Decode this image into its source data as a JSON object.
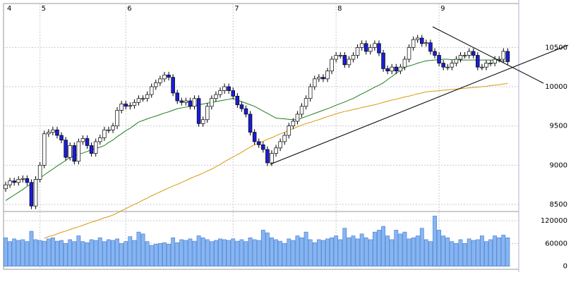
{
  "chart_data": {
    "type": "candlestick",
    "categories": [
      "4",
      null,
      null,
      null,
      null,
      null,
      null,
      null,
      "5",
      null,
      null,
      null,
      null,
      null,
      null,
      null,
      null,
      null,
      null,
      null,
      null,
      null,
      null,
      null,
      null,
      null,
      null,
      null,
      "6",
      null,
      null,
      null,
      null,
      null,
      null,
      null,
      null,
      null,
      null,
      null,
      null,
      null,
      null,
      null,
      null,
      null,
      null,
      null,
      null,
      null,
      null,
      null,
      null,
      "7",
      null,
      null,
      null,
      null,
      null,
      null,
      null,
      null,
      null,
      null,
      null,
      null,
      null,
      null,
      null,
      null,
      null,
      null,
      null,
      null,
      null,
      null,
      null,
      "8",
      null,
      null,
      null,
      null,
      null,
      null,
      null,
      null,
      null,
      null,
      null,
      null,
      null,
      null,
      null,
      null,
      null,
      null,
      null,
      null,
      null,
      null,
      null,
      "9",
      null,
      null,
      null,
      null,
      null,
      null,
      null,
      null,
      null,
      null,
      null,
      null,
      null,
      null,
      null,
      null
    ],
    "open": [
      8700,
      8750,
      8800,
      8780,
      8820,
      8830,
      8780,
      8480,
      8820,
      9000,
      9400,
      9420,
      9450,
      9380,
      9320,
      9100,
      9250,
      9050,
      9300,
      9340,
      9250,
      9150,
      9300,
      9350,
      9450,
      9450,
      9500,
      9700,
      9780,
      9750,
      9760,
      9800,
      9850,
      9850,
      9900,
      10000,
      10050,
      10100,
      10150,
      10120,
      9920,
      9820,
      9800,
      9820,
      9750,
      9850,
      9530,
      9580,
      9750,
      9850,
      9900,
      9950,
      10000,
      9950,
      9880,
      9770,
      9720,
      9650,
      9420,
      9300,
      9260,
      9200,
      9030,
      9150,
      9220,
      9300,
      9380,
      9500,
      9560,
      9650,
      9750,
      9850,
      10000,
      10100,
      10120,
      10100,
      10200,
      10350,
      10400,
      10400,
      10280,
      10350,
      10400,
      10500,
      10550,
      10450,
      10500,
      10550,
      10430,
      10230,
      10200,
      10250,
      10200,
      10250,
      10350,
      10500,
      10600,
      10620,
      10550,
      10560,
      10450,
      10400,
      10300,
      10250,
      10250,
      10300,
      10350,
      10400,
      10400,
      10450,
      10400,
      10250,
      10250,
      10300,
      10300,
      10350,
      10350,
      10450
    ],
    "high": [
      8790,
      8840,
      8840,
      8860,
      8870,
      8870,
      8820,
      8860,
      9040,
      9440,
      9460,
      9490,
      9490,
      9420,
      9360,
      9290,
      9290,
      9340,
      9380,
      9380,
      9290,
      9340,
      9390,
      9490,
      9490,
      9540,
      9740,
      9820,
      9820,
      9800,
      9840,
      9890,
      9890,
      9940,
      10040,
      10090,
      10140,
      10190,
      10190,
      10160,
      9960,
      9860,
      9860,
      9860,
      9890,
      9890,
      9620,
      9790,
      9890,
      9940,
      9990,
      10040,
      10040,
      9990,
      9920,
      9810,
      9760,
      9690,
      9460,
      9340,
      9300,
      9240,
      9190,
      9260,
      9340,
      9420,
      9540,
      9600,
      9690,
      9790,
      9890,
      10040,
      10140,
      10160,
      10160,
      10240,
      10390,
      10440,
      10440,
      10440,
      10390,
      10440,
      10540,
      10590,
      10590,
      10540,
      10590,
      10590,
      10470,
      10270,
      10290,
      10290,
      10290,
      10390,
      10540,
      10640,
      10660,
      10660,
      10600,
      10600,
      10490,
      10440,
      10340,
      10290,
      10340,
      10390,
      10440,
      10440,
      10490,
      10490,
      10440,
      10290,
      10340,
      10340,
      10390,
      10390,
      10490,
      10490
    ],
    "low": [
      8660,
      8710,
      8740,
      8740,
      8780,
      8740,
      8440,
      8440,
      8780,
      8960,
      9360,
      9380,
      9340,
      9280,
      9060,
      9060,
      9010,
      9010,
      9260,
      9210,
      9110,
      9110,
      9260,
      9310,
      9410,
      9410,
      9460,
      9660,
      9710,
      9710,
      9720,
      9760,
      9810,
      9810,
      9860,
      9960,
      10010,
      10060,
      10080,
      9880,
      9780,
      9760,
      9760,
      9710,
      9710,
      9490,
      9490,
      9540,
      9710,
      9810,
      9860,
      9910,
      9910,
      9840,
      9730,
      9680,
      9610,
      9380,
      9260,
      9220,
      9160,
      8990,
      8990,
      9110,
      9180,
      9260,
      9340,
      9460,
      9520,
      9610,
      9710,
      9810,
      9960,
      10060,
      10060,
      10060,
      10160,
      10310,
      10360,
      10240,
      10240,
      10310,
      10360,
      10460,
      10410,
      10410,
      10460,
      10390,
      10190,
      10160,
      10160,
      10160,
      10160,
      10210,
      10310,
      10460,
      10560,
      10510,
      10510,
      10410,
      10360,
      10260,
      10210,
      10210,
      10210,
      10260,
      10310,
      10360,
      10360,
      10360,
      10210,
      10210,
      10210,
      10260,
      10260,
      10310,
      10310,
      10280
    ],
    "close": [
      8750,
      8800,
      8780,
      8820,
      8830,
      8780,
      8480,
      8820,
      9000,
      9400,
      9420,
      9450,
      9380,
      9320,
      9100,
      9250,
      9050,
      9300,
      9340,
      9250,
      9150,
      9300,
      9350,
      9450,
      9450,
      9500,
      9700,
      9780,
      9750,
      9760,
      9800,
      9850,
      9850,
      9900,
      10000,
      10050,
      10100,
      10150,
      10120,
      9920,
      9820,
      9800,
      9820,
      9750,
      9850,
      9530,
      9580,
      9750,
      9850,
      9900,
      9950,
      10000,
      9950,
      9880,
      9770,
      9720,
      9650,
      9420,
      9300,
      9260,
      9200,
      9030,
      9150,
      9220,
      9300,
      9380,
      9500,
      9560,
      9650,
      9750,
      9850,
      10000,
      10100,
      10120,
      10100,
      10200,
      10350,
      10400,
      10400,
      10280,
      10350,
      10400,
      10500,
      10550,
      10450,
      10500,
      10550,
      10430,
      10230,
      10200,
      10250,
      10200,
      10250,
      10350,
      10500,
      10600,
      10620,
      10550,
      10560,
      10450,
      10400,
      10300,
      10250,
      10250,
      10300,
      10350,
      10400,
      10400,
      10450,
      10400,
      10250,
      10250,
      10300,
      10300,
      10350,
      10350,
      10450,
      10320
    ],
    "up_color": "#ffffff",
    "down_color": "#1c1cd8",
    "ylim": [
      8410,
      11060
    ],
    "yticks": [
      8500,
      9000,
      9500,
      10000,
      10500
    ],
    "grid": true,
    "moving_averages": [
      {
        "color": "#1e7d1e",
        "values": [
          8550,
          8585,
          8620,
          8655,
          8690,
          8730,
          8765,
          8800,
          8840,
          8875,
          8915,
          8950,
          8990,
          9025,
          9060,
          9100,
          9120,
          9140,
          9155,
          9175,
          9195,
          9215,
          9230,
          9250,
          9290,
          9320,
          9365,
          9400,
          9440,
          9470,
          9510,
          9550,
          9570,
          9590,
          9610,
          9625,
          9645,
          9665,
          9680,
          9700,
          9720,
          9730,
          9740,
          9750,
          9760,
          9770,
          9780,
          9790,
          9800,
          9810,
          9820,
          9830,
          9840,
          9850,
          9830,
          9810,
          9790,
          9770,
          9750,
          9720,
          9690,
          9660,
          9630,
          9600,
          9595,
          9590,
          9585,
          9580,
          9580,
          9600,
          9620,
          9640,
          9660,
          9680,
          9700,
          9720,
          9740,
          9765,
          9785,
          9805,
          9830,
          9850,
          9880,
          9910,
          9935,
          9965,
          9995,
          10020,
          10050,
          10090,
          10130,
          10170,
          10210,
          10250,
          10265,
          10280,
          10300,
          10315,
          10330,
          10335,
          10340,
          10345,
          10350,
          10350,
          10345,
          10345,
          10340,
          10340,
          10340,
          10340,
          10340,
          10340,
          10340,
          10340,
          10340,
          10335,
          10325,
          10320
        ]
      },
      {
        "color": "#d8980f",
        "values": [
          null,
          null,
          null,
          null,
          null,
          null,
          null,
          null,
          null,
          8070,
          8090,
          8105,
          8125,
          8145,
          8160,
          8180,
          8200,
          8215,
          8235,
          8255,
          8275,
          8290,
          8310,
          8330,
          8345,
          8365,
          8390,
          8420,
          8445,
          8475,
          8500,
          8525,
          8555,
          8580,
          8610,
          8635,
          8660,
          8685,
          8710,
          8735,
          8755,
          8780,
          8805,
          8830,
          8855,
          8875,
          8900,
          8925,
          8950,
          8980,
          9010,
          9045,
          9075,
          9105,
          9135,
          9165,
          9200,
          9230,
          9260,
          9285,
          9305,
          9330,
          9350,
          9375,
          9400,
          9420,
          9445,
          9465,
          9490,
          9510,
          9530,
          9545,
          9565,
          9580,
          9600,
          9620,
          9635,
          9655,
          9670,
          9685,
          9695,
          9710,
          9720,
          9735,
          9745,
          9760,
          9770,
          9785,
          9800,
          9815,
          9830,
          9840,
          9855,
          9870,
          9880,
          9895,
          9910,
          9920,
          9935,
          9940,
          9945,
          9950,
          9955,
          9960,
          9965,
          9970,
          9975,
          9980,
          9985,
          9990,
          9995,
          10000,
          10005,
          10015,
          10020,
          10025,
          10035,
          10040
        ]
      }
    ],
    "volume": {
      "color": "#86b6f2",
      "values": [
        75000,
        65000,
        72000,
        68000,
        70000,
        65000,
        92000,
        70000,
        68000,
        66000,
        72000,
        75000,
        66000,
        68000,
        60000,
        70000,
        65000,
        80000,
        65000,
        62000,
        70000,
        68000,
        75000,
        65000,
        70000,
        68000,
        72000,
        60000,
        65000,
        78000,
        68000,
        90000,
        85000,
        65000,
        55000,
        58000,
        60000,
        62000,
        58000,
        75000,
        62000,
        70000,
        68000,
        72000,
        66000,
        80000,
        75000,
        70000,
        65000,
        68000,
        72000,
        70000,
        68000,
        72000,
        66000,
        70000,
        65000,
        75000,
        70000,
        68000,
        95000,
        88000,
        75000,
        70000,
        66000,
        60000,
        72000,
        68000,
        80000,
        75000,
        90000,
        70000,
        62000,
        70000,
        68000,
        72000,
        75000,
        80000,
        70000,
        100000,
        75000,
        80000,
        72000,
        85000,
        75000,
        70000,
        90000,
        95000,
        105000,
        80000,
        70000,
        95000,
        85000,
        90000,
        72000,
        75000,
        80000,
        100000,
        70000,
        65000,
        132000,
        95000,
        80000,
        75000,
        65000,
        60000,
        70000,
        60000,
        72000,
        68000,
        70000,
        80000,
        65000,
        70000,
        80000,
        75000,
        82000,
        75000
      ],
      "ylim": [
        -8000,
        144000
      ],
      "yticks": [
        0,
        60000,
        120000
      ]
    }
  }
}
